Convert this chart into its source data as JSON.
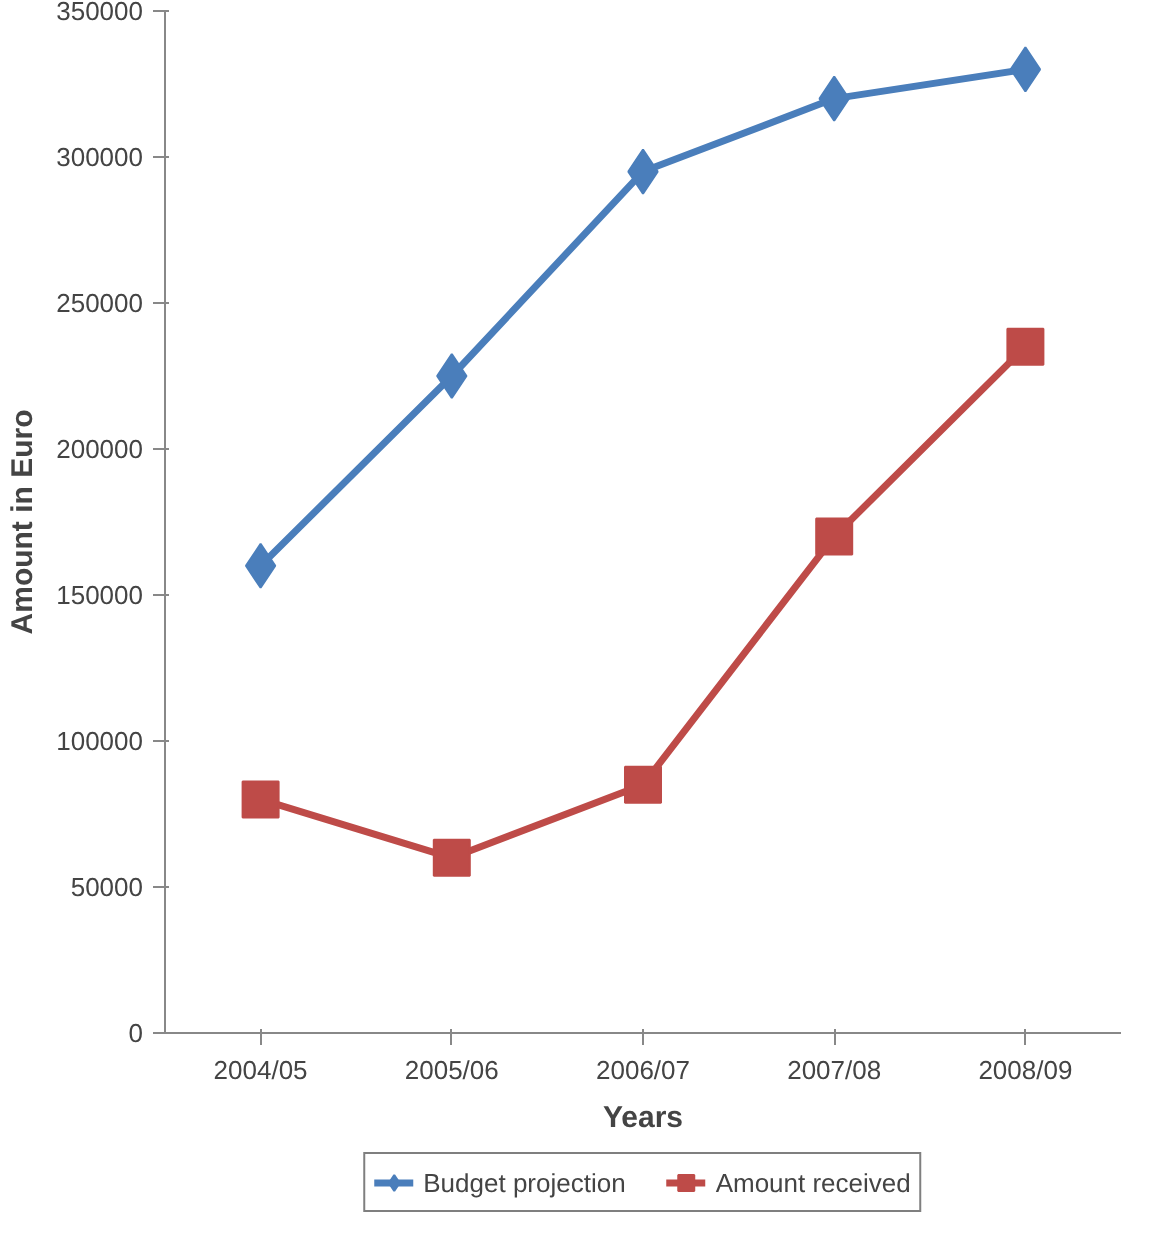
{
  "chart_data": {
    "type": "line",
    "xlabel": "Years",
    "ylabel": "Amount in Euro",
    "categories": [
      "2004/05",
      "2005/06",
      "2006/07",
      "2007/08",
      "2008/09"
    ],
    "series": [
      {
        "name": "Budget projection",
        "color": "#4a7ebb",
        "marker": "diamond",
        "values": [
          160000,
          225000,
          295000,
          320000,
          330000
        ]
      },
      {
        "name": "Amount received",
        "color": "#be4b48",
        "marker": "square",
        "values": [
          80000,
          60000,
          85000,
          170000,
          235000
        ]
      }
    ],
    "ylim": [
      0,
      350000
    ],
    "yticks": [
      0,
      50000,
      100000,
      150000,
      200000,
      250000,
      300000,
      350000
    ],
    "grid": false,
    "legend": "bottom",
    "line_style": "solid"
  }
}
